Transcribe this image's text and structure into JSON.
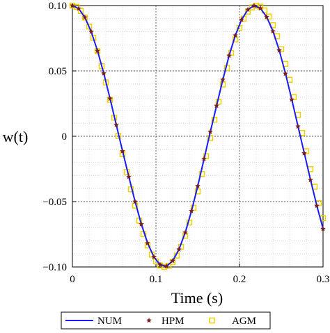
{
  "chart_data": {
    "type": "line",
    "xlabel": "Time (s)",
    "ylabel": "w(t)",
    "xlim": [
      0,
      0.3
    ],
    "ylim": [
      -0.1,
      0.1
    ],
    "x_ticks": [
      0,
      0.1,
      0.2,
      0.3
    ],
    "x_tick_labels": [
      "0",
      "0.1",
      "0.2",
      "0.3"
    ],
    "y_ticks": [
      0.1,
      0.05,
      0,
      -0.05,
      -0.1
    ],
    "y_tick_labels": [
      "0.10",
      "0.05",
      "0",
      "−0.05",
      "−0.10"
    ],
    "grid": true,
    "legend_position": "bottom",
    "series": [
      {
        "name": "NUM",
        "style": "line",
        "color": "#1a1aff",
        "x": [
          0,
          0.0075,
          0.015,
          0.0225,
          0.03,
          0.0375,
          0.045,
          0.0525,
          0.06,
          0.0675,
          0.075,
          0.0825,
          0.09,
          0.0975,
          0.105,
          0.1125,
          0.12,
          0.1275,
          0.135,
          0.1425,
          0.15,
          0.1575,
          0.165,
          0.1725,
          0.18,
          0.1875,
          0.195,
          0.2025,
          0.21,
          0.2175,
          0.225,
          0.2325,
          0.24,
          0.2475,
          0.255,
          0.2625,
          0.27,
          0.2775,
          0.285,
          0.2925,
          0.3
        ],
        "y": [
          0.1,
          0.0977,
          0.0909,
          0.08,
          0.0655,
          0.0482,
          0.0289,
          0.0088,
          -0.0113,
          -0.0308,
          -0.0499,
          -0.0672,
          -0.0817,
          -0.0923,
          -0.0983,
          -0.0994,
          -0.0954,
          -0.0867,
          -0.0738,
          -0.0573,
          -0.0382,
          -0.0176,
          0.0032,
          0.0232,
          0.0431,
          0.0616,
          0.0771,
          0.0892,
          0.0969,
          0.0999,
          0.0979,
          0.0913,
          0.0805,
          0.0659,
          0.0481,
          0.0283,
          0.0077,
          -0.0128,
          -0.0333,
          -0.053,
          -0.0707
        ]
      },
      {
        "name": "HPM",
        "style": "marker",
        "marker": "star",
        "color": "#7a1f1f",
        "x": [
          0,
          0.0075,
          0.015,
          0.0225,
          0.03,
          0.0375,
          0.045,
          0.0525,
          0.06,
          0.0675,
          0.075,
          0.0825,
          0.09,
          0.0975,
          0.105,
          0.1125,
          0.12,
          0.1275,
          0.135,
          0.1425,
          0.15,
          0.1575,
          0.165,
          0.1725,
          0.18,
          0.1875,
          0.195,
          0.2025,
          0.21,
          0.2175,
          0.225,
          0.2325,
          0.24,
          0.2475,
          0.255,
          0.2625,
          0.27,
          0.2775,
          0.285,
          0.2925,
          0.3
        ],
        "y": [
          0.1,
          0.0977,
          0.0909,
          0.08,
          0.0654,
          0.0481,
          0.0288,
          0.0087,
          -0.0114,
          -0.031,
          -0.05,
          -0.0673,
          -0.0818,
          -0.0924,
          -0.0983,
          -0.0994,
          -0.0953,
          -0.0866,
          -0.0737,
          -0.0572,
          -0.0381,
          -0.0174,
          0.0034,
          0.0234,
          0.0433,
          0.0617,
          0.0772,
          0.0892,
          0.0969,
          0.0999,
          0.0979,
          0.0912,
          0.0803,
          0.0657,
          0.0479,
          0.0281,
          0.0075,
          -0.013,
          -0.0335,
          -0.0532,
          -0.0709
        ]
      },
      {
        "name": "AGM",
        "style": "marker",
        "marker": "square-open",
        "color": "#f0d000",
        "x": [
          0,
          0.005,
          0.01,
          0.015,
          0.02,
          0.025,
          0.03,
          0.035,
          0.04,
          0.045,
          0.05,
          0.055,
          0.06,
          0.065,
          0.07,
          0.075,
          0.08,
          0.085,
          0.09,
          0.095,
          0.1,
          0.105,
          0.11,
          0.115,
          0.12,
          0.125,
          0.13,
          0.135,
          0.14,
          0.145,
          0.15,
          0.155,
          0.16,
          0.165,
          0.17,
          0.175,
          0.18,
          0.185,
          0.19,
          0.195,
          0.2,
          0.205,
          0.21,
          0.215,
          0.22,
          0.225,
          0.23,
          0.235,
          0.24,
          0.245,
          0.25,
          0.255,
          0.26,
          0.265,
          0.27,
          0.275,
          0.28,
          0.285,
          0.29,
          0.295,
          0.3
        ],
        "y": [
          0.1,
          0.099,
          0.0959,
          0.0908,
          0.0839,
          0.0753,
          0.0651,
          0.0536,
          0.0412,
          0.0279,
          0.0142,
          0.0003,
          -0.0136,
          -0.0273,
          -0.0406,
          -0.0531,
          -0.0646,
          -0.0748,
          -0.0835,
          -0.0905,
          -0.0957,
          -0.0988,
          -0.1,
          -0.0991,
          -0.0962,
          -0.0913,
          -0.0846,
          -0.0761,
          -0.066,
          -0.0547,
          -0.0422,
          -0.0289,
          -0.0153,
          -0.0013,
          0.0126,
          0.0264,
          0.0397,
          0.0522,
          0.0638,
          0.0741,
          0.0829,
          0.09,
          0.0953,
          0.0986,
          0.0999,
          0.0991,
          0.0963,
          0.0916,
          0.085,
          0.0765,
          0.0666,
          0.0554,
          0.0432,
          0.03,
          0.0164,
          0.0025,
          -0.0114,
          -0.0252,
          -0.0386,
          -0.0511,
          -0.0627
        ]
      }
    ]
  }
}
